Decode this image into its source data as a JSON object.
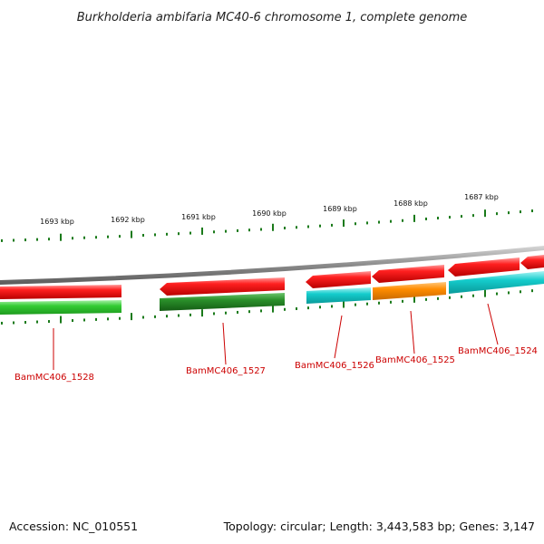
{
  "title": "Burkholderia ambifaria MC40-6 chromosome 1, complete genome",
  "footer": {
    "accession": "Accession: NC_010551",
    "summary": "Topology: circular; Length: 3,443,583 bp; Genes: 3,147"
  },
  "colors": {
    "backbone": "#8a8a8a",
    "cds_forward": "#ee1111",
    "gene_light_green": "#33cc33",
    "gene_dark_green": "#228822",
    "gene_cyan": "#11cccc",
    "gene_orange": "#ff8c00",
    "ticks": "#1a7a1a",
    "label_red": "#cc0000"
  },
  "ticks": [
    "1693 kbp",
    "1692 kbp",
    "1691 kbp",
    "1690 kbp",
    "1689 kbp",
    "1688 kbp",
    "1687 kbp"
  ],
  "genes": [
    "BamMC406_1528",
    "BamMC406_1527",
    "BamMC406_1526",
    "BamMC406_1525",
    "BamMC406_1524"
  ]
}
